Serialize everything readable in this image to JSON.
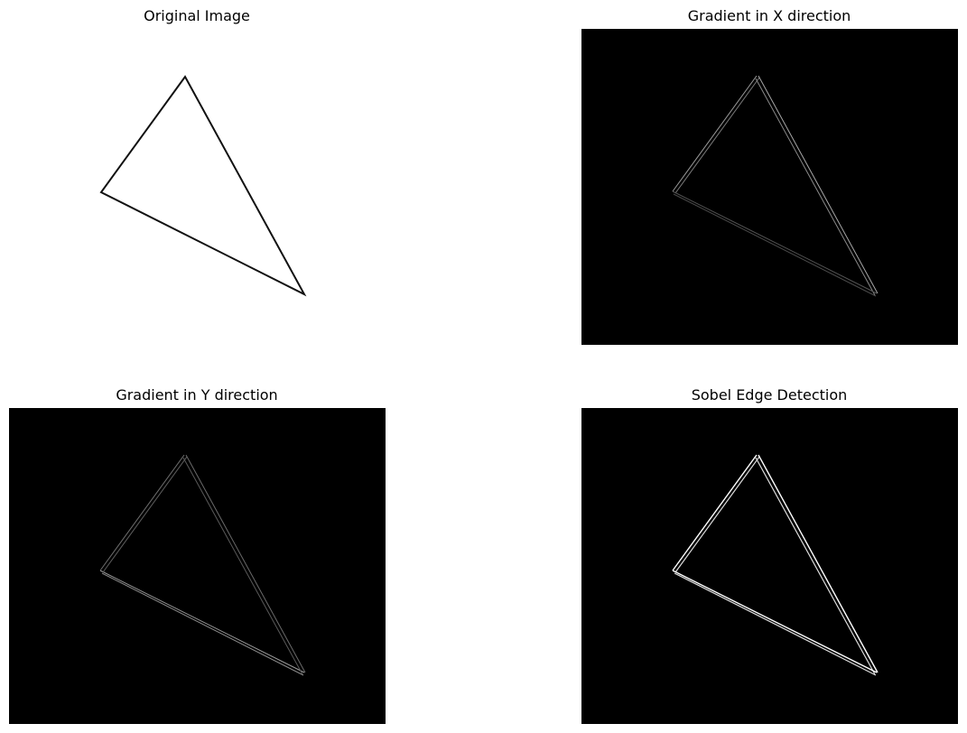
{
  "figure": {
    "panels": [
      {
        "title": "Original Image",
        "background": "#ffffff",
        "stroke": "#111111",
        "style": "solid"
      },
      {
        "title": "Gradient in X direction",
        "background": "#000000",
        "stroke": "#8c8c8c",
        "style": "double-dim"
      },
      {
        "title": "Gradient in Y direction",
        "background": "#000000",
        "stroke": "#8c8c8c",
        "style": "double-dim"
      },
      {
        "title": "Sobel Edge Detection",
        "background": "#000000",
        "stroke": "#ffffff",
        "style": "double-bright"
      }
    ]
  }
}
